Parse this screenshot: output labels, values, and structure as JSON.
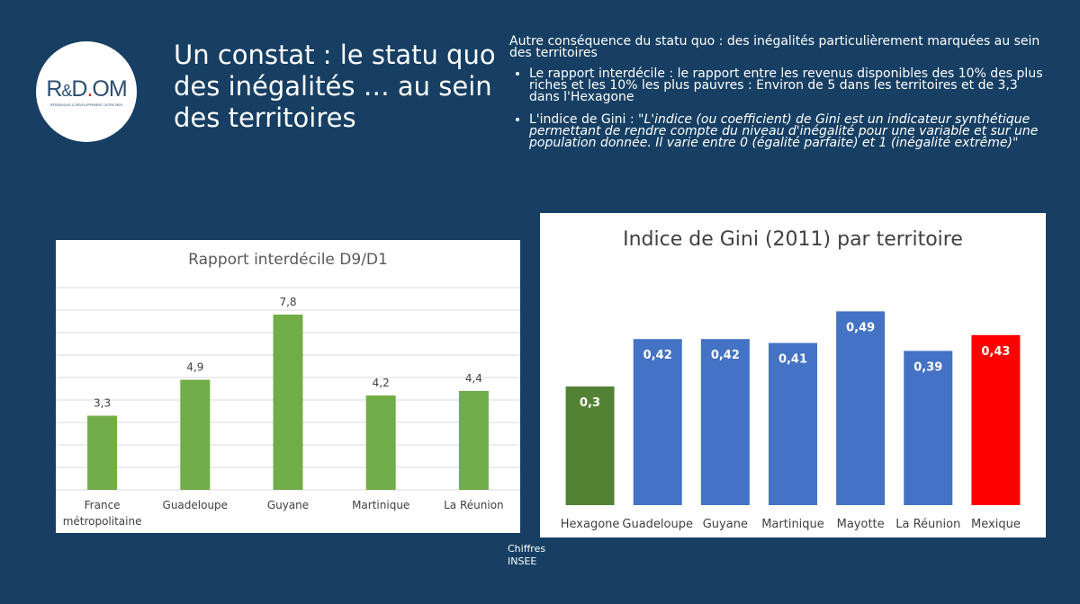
{
  "logo": {
    "text": "R&D.OM",
    "subtitle": "RÉPUBLIQUE & DÉVELOPPEMENT OUTRE-MER"
  },
  "title": "Un constat : le statu quo des inégalités … au sein des territoires",
  "intro": "Autre conséquence du statu quo : des inégalités particulièrement marquées au sein des territoires",
  "bullets": [
    {
      "text": "Le rapport interdécile : le rapport entre les revenus disponibles des 10% des plus riches et les 10% les plus pauvres : Environ de 5 dans les territoires et de 3,3 dans l'Hexagone"
    },
    {
      "text": "L'indice de Gini : \"",
      "italic": "L'indice (ou coefficient) de Gini est un indicateur synthétique permettant de rendre compte du niveau d'inégalité pour une variable et sur une population donnée. Il varie entre 0 (égalité parfaite) et 1 (inégalité extrême)\""
    }
  ],
  "source": "Chiffres INSEE",
  "chart_data": [
    {
      "type": "bar",
      "title": "Rapport interdécile D9/D1",
      "categories": [
        "France métropolitaine",
        "Guadeloupe",
        "Guyane",
        "Martinique",
        "La Réunion"
      ],
      "values": [
        3.3,
        4.9,
        7.8,
        4.2,
        4.4
      ],
      "labels": [
        "3,3",
        "4,9",
        "7,8",
        "4,2",
        "4,4"
      ],
      "ylim": [
        0,
        9
      ],
      "grid": true,
      "colors": [
        "#70ad47"
      ]
    },
    {
      "type": "bar",
      "title": "Indice de Gini (2011) par territoire",
      "categories": [
        "Hexagone",
        "Guadeloupe",
        "Guyane",
        "Martinique",
        "Mayotte",
        "La Réunion",
        "Mexique"
      ],
      "values": [
        0.3,
        0.42,
        0.42,
        0.41,
        0.49,
        0.39,
        0.43
      ],
      "labels": [
        "0,3",
        "0,42",
        "0,42",
        "0,41",
        "0,49",
        "0,39",
        "0,43"
      ],
      "grid": false,
      "colors": [
        "#548235",
        "#4472c4",
        "#4472c4",
        "#4472c4",
        "#4472c4",
        "#4472c4",
        "#ff0000"
      ]
    }
  ]
}
